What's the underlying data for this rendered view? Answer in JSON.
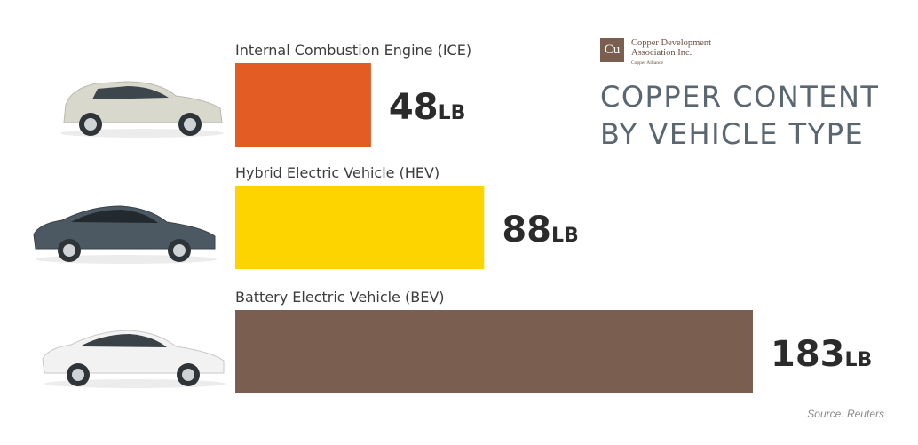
{
  "logo": {
    "symbol": "Cu",
    "line1": "Copper Development",
    "line2": "Association Inc.",
    "line3": "Copper Alliance"
  },
  "title_lines": [
    "COPPER CONTENT",
    "BY VEHICLE TYPE"
  ],
  "source": "Source: Reuters",
  "chart_data": {
    "type": "bar",
    "orientation": "horizontal",
    "categories": [
      "Internal Combustion Engine (ICE)",
      "Hybrid Electric Vehicle (HEV)",
      "Battery Electric Vehicle (BEV)"
    ],
    "values": [
      48,
      88,
      183
    ],
    "unit": "LB",
    "value_labels": [
      "48",
      "88",
      "183"
    ],
    "colors": [
      "#e35c24",
      "#fdd300",
      "#7a5e50"
    ],
    "icons": [
      "hatchback-car-icon",
      "dark-sedan-car-icon",
      "white-sedan-car-icon"
    ],
    "car_colors": [
      "#d8d8cc",
      "#4c5862",
      "#f2f2f2"
    ],
    "title": "COPPER CONTENT BY VEHICLE TYPE",
    "grid": false,
    "legend": "none"
  }
}
